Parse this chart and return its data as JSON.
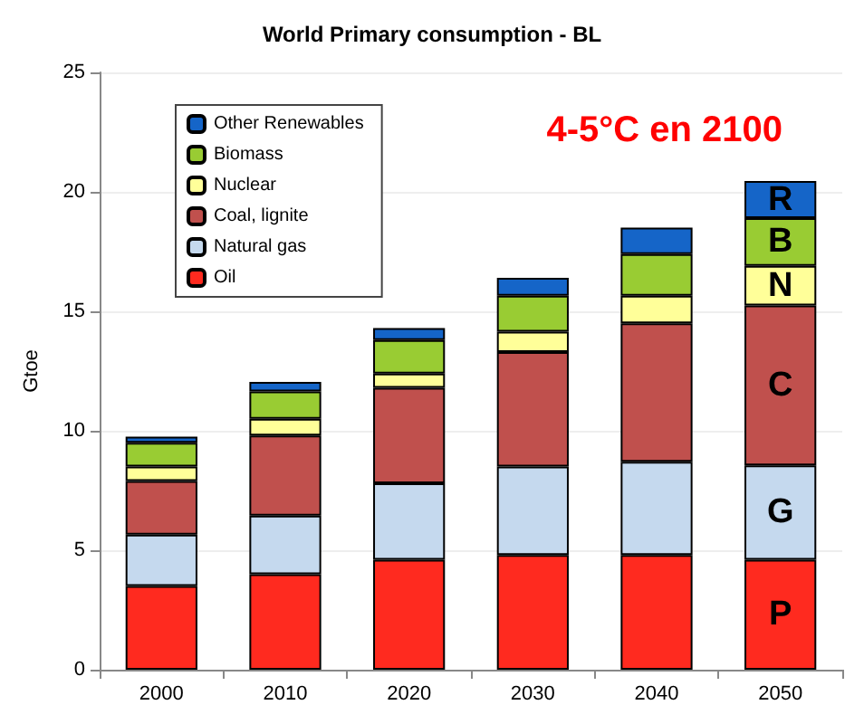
{
  "chart_data": {
    "type": "bar",
    "title": "World Primary consumption - BL",
    "ylabel": "Gtoe",
    "stacked": true,
    "categories": [
      "2000",
      "2010",
      "2020",
      "2030",
      "2040",
      "2050"
    ],
    "series": [
      {
        "name": "Oil",
        "color": "#ff2a1f",
        "values": [
          3.5,
          4.0,
          4.6,
          4.8,
          4.8,
          4.6
        ]
      },
      {
        "name": "Natural gas",
        "color": "#c5d9ee",
        "values": [
          2.15,
          2.45,
          3.2,
          3.7,
          3.9,
          3.95
        ]
      },
      {
        "name": "Coal, lignite",
        "color": "#c0504d",
        "values": [
          2.25,
          3.35,
          4.0,
          4.8,
          5.8,
          6.7
        ]
      },
      {
        "name": "Nuclear",
        "color": "#ffff99",
        "values": [
          0.6,
          0.7,
          0.6,
          0.85,
          1.15,
          1.65
        ]
      },
      {
        "name": "Biomass",
        "color": "#99cc33",
        "values": [
          1.0,
          1.15,
          1.4,
          1.5,
          1.75,
          2.0
        ]
      },
      {
        "name": "Other Renewables",
        "color": "#1565c8",
        "values": [
          0.25,
          0.4,
          0.5,
          0.75,
          1.1,
          1.55
        ]
      }
    ],
    "ylim": [
      0,
      25
    ],
    "yticks": [
      0,
      5,
      10,
      15,
      20,
      25
    ],
    "grid": "y",
    "legend": "top left",
    "annotations": [
      "4-5°C en 2100",
      "P",
      "G",
      "C",
      "N",
      "B",
      "R"
    ]
  }
}
